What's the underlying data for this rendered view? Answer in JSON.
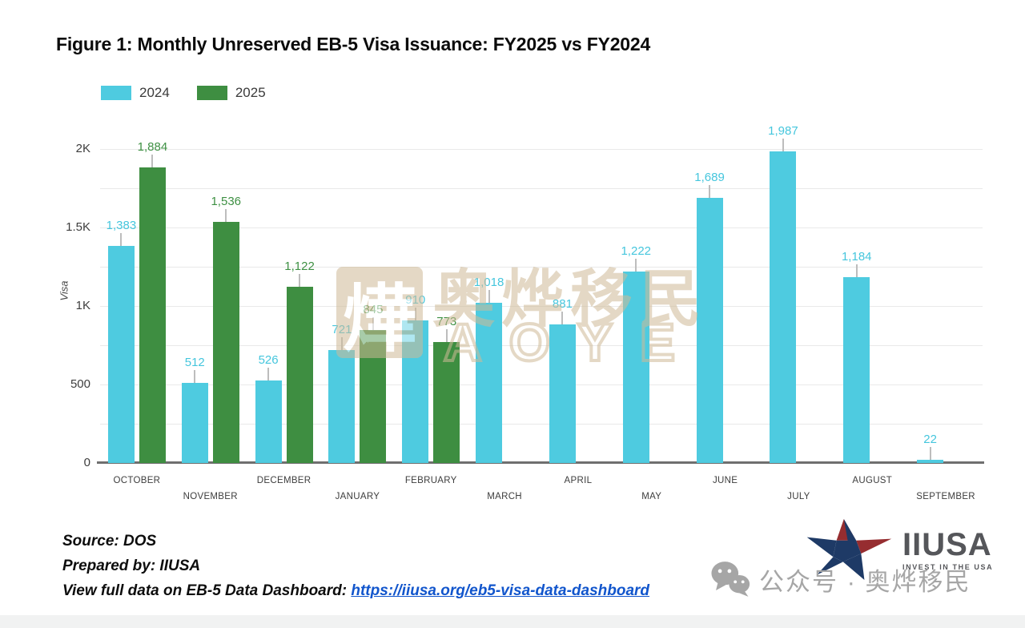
{
  "title": "Figure 1: Monthly Unreserved EB-5 Visa Issuance: FY2025 vs FY2024",
  "legend": {
    "items": [
      {
        "label": "2024",
        "color": "#4ecbe0"
      },
      {
        "label": "2025",
        "color": "#3e8e41"
      }
    ]
  },
  "chart_data": {
    "type": "bar",
    "title": "Figure 1: Monthly Unreserved EB-5 Visa Issuance: FY2025 vs FY2024",
    "xlabel": "",
    "ylabel": "Visa",
    "ylim": [
      0,
      2000
    ],
    "grid_step": 250,
    "legend_position": "top-left",
    "categories": [
      "OCTOBER",
      "NOVEMBER",
      "DECEMBER",
      "JANUARY",
      "FEBRUARY",
      "MARCH",
      "APRIL",
      "MAY",
      "JUNE",
      "JULY",
      "AUGUST",
      "SEPTEMBER"
    ],
    "yticks": [
      {
        "value": 0,
        "label": "0"
      },
      {
        "value": 500,
        "label": "500"
      },
      {
        "value": 1000,
        "label": "1K"
      },
      {
        "value": 1500,
        "label": "1.5K"
      },
      {
        "value": 2000,
        "label": "2K"
      }
    ],
    "series": [
      {
        "name": "2024",
        "color": "#4ecbe0",
        "label_color": "#45c6dd",
        "values": [
          1383,
          512,
          526,
          721,
          910,
          1018,
          881,
          1222,
          1689,
          1987,
          1184,
          22
        ]
      },
      {
        "name": "2025",
        "color": "#3e8e41",
        "label_color": "#3e9043",
        "values": [
          1884,
          1536,
          1122,
          845,
          773,
          null,
          null,
          null,
          null,
          null,
          null,
          null
        ]
      }
    ]
  },
  "footer": {
    "source": "Source: DOS",
    "prepared_by": "Prepared by: IIUSA",
    "dashboard_label": "View full data on EB-5 Data Dashboard: ",
    "dashboard_link": "https://iiusa.org/eb5-visa-data-dashboard"
  },
  "logo": {
    "name": "IIUSA",
    "tagline": "INVEST IN THE USA"
  },
  "watermarks": {
    "center": {
      "seal_char": "燁",
      "main_text": "奥烨移民",
      "latin_text": "AOYE"
    },
    "bottom_right": {
      "text": "公众号 · 奥烨移民"
    }
  },
  "colors": {
    "bar_2024": "#4ecbe0",
    "bar_2025": "#3e8e41",
    "gridline": "#e9e9e9",
    "axis_line": "#6f6f6f",
    "leader_line": "#bdbdbd",
    "tick_text": "#3d3d3d",
    "watermark_tan": "#cfba97",
    "watermark_gray": "#a6a6a6",
    "link_blue": "#1155cc",
    "logo_red": "#962d30",
    "logo_navy": "#1e3a66",
    "logo_text_gray": "#55565a",
    "bottom_strip": "#f1f2f2"
  }
}
